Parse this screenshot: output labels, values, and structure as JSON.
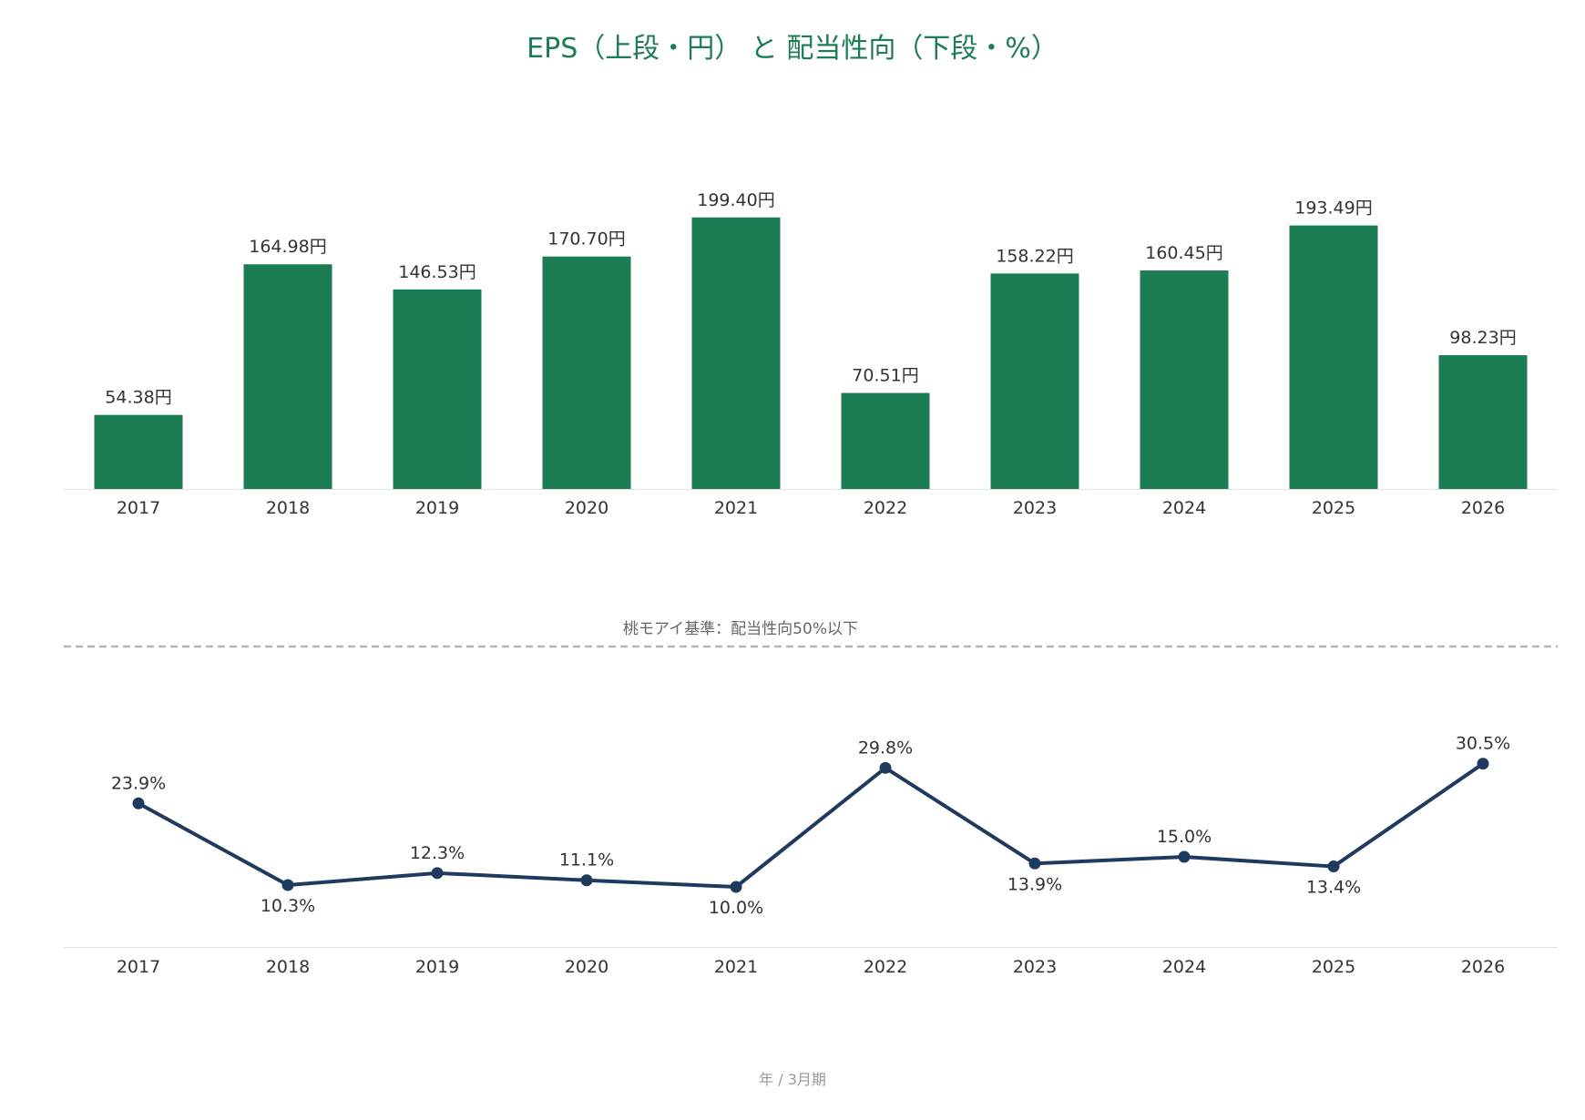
{
  "chart_data": [
    {
      "type": "bar",
      "title": "EPS（上段・円） と 配当性向（下段・%）",
      "categories": [
        "2017",
        "2018",
        "2019",
        "2020",
        "2021",
        "2022",
        "2023",
        "2024",
        "2025",
        "2026"
      ],
      "values": [
        54.38,
        164.98,
        146.53,
        170.7,
        199.4,
        70.51,
        158.22,
        160.45,
        193.49,
        98.23
      ],
      "data_labels": [
        "54.38円",
        "164.98円",
        "146.53円",
        "170.70円",
        "199.40円",
        "70.51円",
        "158.22円",
        "160.45円",
        "193.49円",
        "98.23円"
      ],
      "ylim": [
        0,
        230
      ],
      "color": "#1c7c53"
    },
    {
      "type": "line",
      "categories": [
        "2017",
        "2018",
        "2019",
        "2020",
        "2021",
        "2022",
        "2023",
        "2024",
        "2025",
        "2026"
      ],
      "values": [
        23.9,
        10.3,
        12.3,
        11.1,
        10.0,
        29.8,
        13.9,
        15.0,
        13.4,
        30.5
      ],
      "data_labels": [
        "23.9%",
        "10.3%",
        "12.3%",
        "11.1%",
        "10.0%",
        "29.8%",
        "13.9%",
        "15.0%",
        "13.4%",
        "30.5%"
      ],
      "ylim": [
        0,
        55
      ],
      "reference_line": {
        "value": 50,
        "label": "桃モアイ基準：配当性向50%以下"
      },
      "xlabel": "年 / 3月期",
      "color": "#1f3a5f"
    }
  ]
}
